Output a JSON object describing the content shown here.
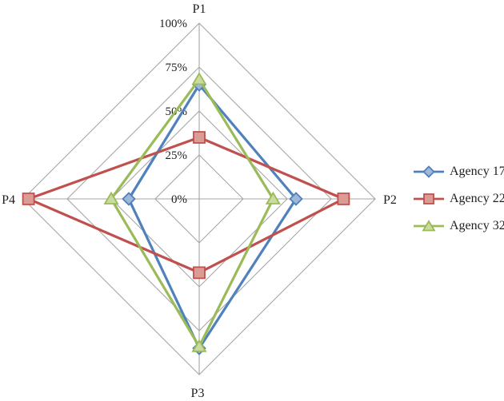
{
  "figure": {
    "background": "#ffffff",
    "text_color": "#1f1f1f"
  },
  "chart_data": {
    "type": "radar",
    "title": "",
    "categories": [
      "P1",
      "P2",
      "P3",
      "P4"
    ],
    "axis": {
      "min": 0,
      "max": 100,
      "tick_labels": [
        "0%",
        "25%",
        "50%",
        "75%",
        "100%"
      ],
      "tick_values": [
        0,
        25,
        50,
        75,
        100
      ],
      "gridline_color": "#A6A6A6",
      "grid_shape": "polygon",
      "grid_on": true
    },
    "series": [
      {
        "name": "Agency 17",
        "marker": "diamond",
        "color": "#4F81BD",
        "marker_fill": "#A0B8D8",
        "values": [
          65,
          55,
          85,
          40
        ]
      },
      {
        "name": "Agency 22",
        "marker": "square",
        "color": "#C0504D",
        "marker_fill": "#DC9C96",
        "values": [
          35,
          82,
          42,
          97
        ]
      },
      {
        "name": "Agency 32",
        "marker": "triangle",
        "color": "#9BBB59",
        "marker_fill": "#CBDA9F",
        "values": [
          68,
          42,
          84,
          50
        ]
      }
    ],
    "legend_position": "right"
  }
}
